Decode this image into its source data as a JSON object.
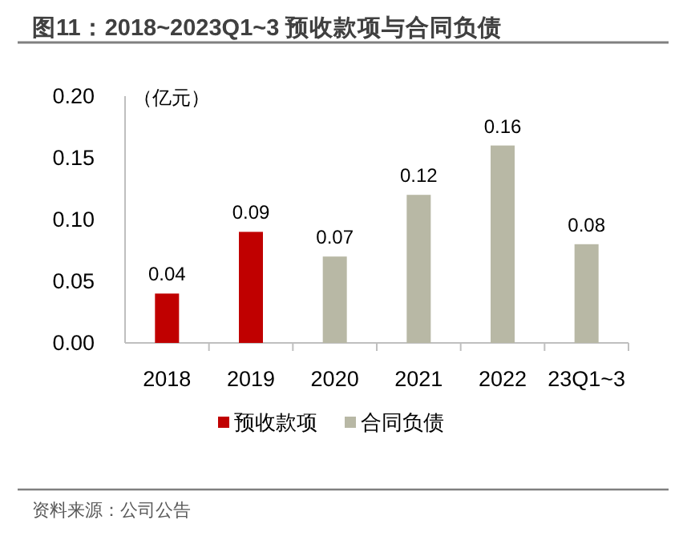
{
  "chart_data": {
    "type": "bar",
    "title": "图11：2018~2023Q1~3 预收款项与合同负债",
    "ylabel": "（亿元）",
    "categories": [
      "2018",
      "2019",
      "2020",
      "2021",
      "2022",
      "23Q1~3"
    ],
    "series": [
      {
        "name": "预收款项",
        "color": "#c00000",
        "values": [
          0.04,
          0.09,
          null,
          null,
          null,
          null
        ]
      },
      {
        "name": "合同负债",
        "color": "#b8b8a5",
        "values": [
          null,
          null,
          0.07,
          0.12,
          0.16,
          0.08
        ]
      }
    ],
    "ylim": [
      0,
      0.2
    ],
    "yticks": [
      {
        "value": 0,
        "label": "0.00"
      },
      {
        "value": 0.05,
        "label": "0.05"
      },
      {
        "value": 0.1,
        "label": "0.10"
      },
      {
        "value": 0.15,
        "label": "0.15"
      },
      {
        "value": 0.2,
        "label": "0.20"
      }
    ],
    "data_labels": true,
    "grid": false,
    "legend": "bottom",
    "annotations": [
      "资料来源：公司公告"
    ]
  }
}
